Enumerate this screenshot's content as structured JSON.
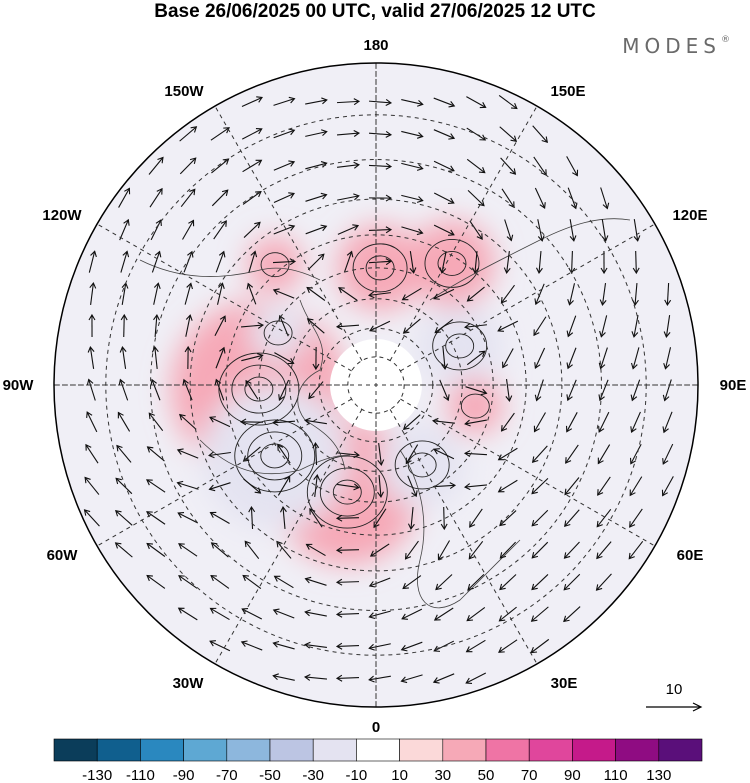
{
  "header": {
    "title": "Base 26/06/2025 00 UTC, valid 27/06/2025 12 UTC",
    "brand": "MODES",
    "brand_mark": "®"
  },
  "map": {
    "projection": "north-polar-stereographic",
    "longitude_labels": [
      "180",
      "150E",
      "120E",
      "90E",
      "60E",
      "30E",
      "0",
      "30W",
      "60W",
      "90W",
      "120W",
      "150W"
    ],
    "anomaly_centers": [
      {
        "sign": "positive",
        "level": 110,
        "lat": 50,
        "lon": -88
      },
      {
        "sign": "positive",
        "level": 90,
        "lat": 52,
        "lon": -15
      },
      {
        "sign": "negative",
        "level": -90,
        "lat": 48,
        "lon": -55
      },
      {
        "sign": "negative",
        "level": -50,
        "lat": 58,
        "lon": 115
      },
      {
        "sign": "negative",
        "level": -50,
        "lat": 58,
        "lon": 30
      },
      {
        "sign": "positive",
        "level": 50,
        "lat": 42,
        "lon": 148
      },
      {
        "sign": "positive",
        "level": 50,
        "lat": 50,
        "lon": 178
      },
      {
        "sign": "positive",
        "level": 30,
        "lat": 38,
        "lon": -140
      },
      {
        "sign": "positive",
        "level": 30,
        "lat": 55,
        "lon": 78
      },
      {
        "sign": "negative",
        "level": -30,
        "lat": 52,
        "lon": -118
      }
    ]
  },
  "wind_reference": {
    "value": "10"
  },
  "colorbar": {
    "ticks": [
      "-130",
      "-110",
      "-90",
      "-70",
      "-50",
      "-30",
      "-10",
      "10",
      "30",
      "50",
      "70",
      "90",
      "110",
      "130"
    ],
    "colors": [
      "#0b3d5a",
      "#105f8e",
      "#2a88bf",
      "#5ea8d3",
      "#8db7dd",
      "#bcc5e3",
      "#e4e3f1",
      "#ffffff",
      "#fbd9d9",
      "#f6a9b7",
      "#ef74a5",
      "#e0469c",
      "#c51a8a",
      "#8f0c82",
      "#5a0f7a"
    ]
  }
}
